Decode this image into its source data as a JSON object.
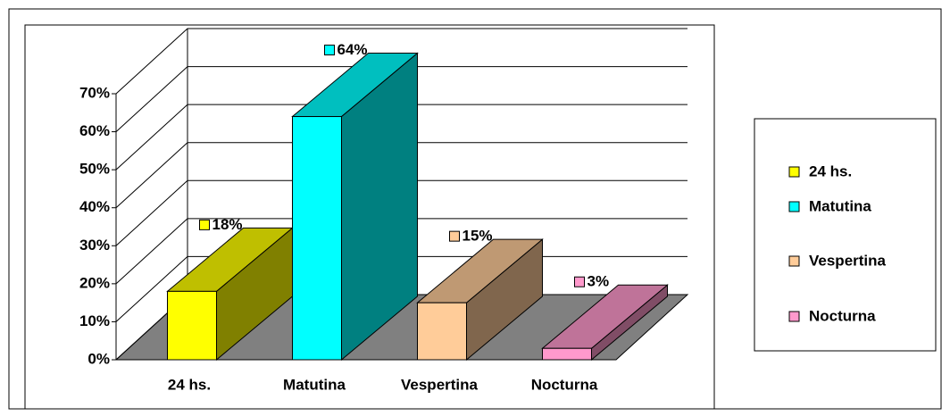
{
  "chart_data": {
    "type": "bar3d",
    "categories": [
      "24 hs.",
      "Matutina",
      "Vespertina",
      "Nocturna"
    ],
    "values": [
      18,
      64,
      15,
      3
    ],
    "value_labels": [
      "18%",
      "64%",
      "15%",
      "3%"
    ],
    "colors": [
      "#ffff00",
      "#00ffff",
      "#ffcc99",
      "#ff99cc"
    ],
    "ylim": [
      0,
      70
    ],
    "yticks": [
      {
        "value": 0,
        "label": "0%"
      },
      {
        "value": 10,
        "label": "10%"
      },
      {
        "value": 20,
        "label": "20%"
      },
      {
        "value": 30,
        "label": "30%"
      },
      {
        "value": 40,
        "label": "40%"
      },
      {
        "value": 50,
        "label": "50%"
      },
      {
        "value": 60,
        "label": "60%"
      },
      {
        "value": 70,
        "label": "70%"
      }
    ],
    "grid": true,
    "legend": "right"
  }
}
